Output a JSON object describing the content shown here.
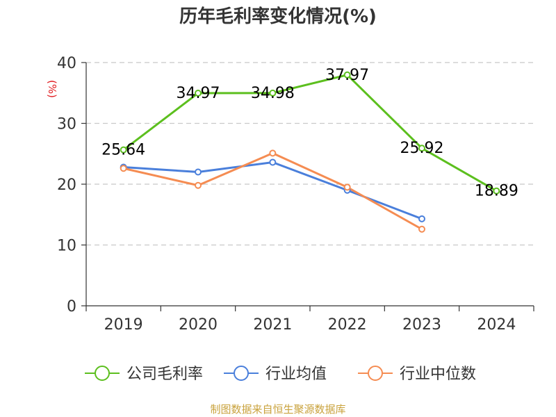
{
  "chart_data": {
    "type": "line",
    "title": "历年毛利率变化情况(%)",
    "xlabel": "",
    "ylabel": "(%)",
    "ylim": [
      0,
      40
    ],
    "yticks": [
      0,
      10,
      20,
      30,
      40
    ],
    "grid": true,
    "legend_position": "bottom",
    "categories": [
      "2019",
      "2020",
      "2021",
      "2022",
      "2023",
      "2024"
    ],
    "series": [
      {
        "name": "公司毛利率",
        "color": "#5cbf1e",
        "values": [
          25.64,
          34.97,
          34.98,
          37.97,
          25.92,
          18.89
        ],
        "labels": [
          "25.64",
          "34.97",
          "34.98",
          "37.97",
          "25.92",
          "18.89"
        ]
      },
      {
        "name": "行业均值",
        "color": "#4a7fdb",
        "values": [
          22.8,
          22.0,
          23.6,
          19.0,
          14.3,
          null
        ]
      },
      {
        "name": "行业中位数",
        "color": "#f58c52",
        "values": [
          22.6,
          19.8,
          25.1,
          19.5,
          12.6,
          null
        ]
      }
    ],
    "source": "制图数据来自恒生聚源数据库"
  }
}
